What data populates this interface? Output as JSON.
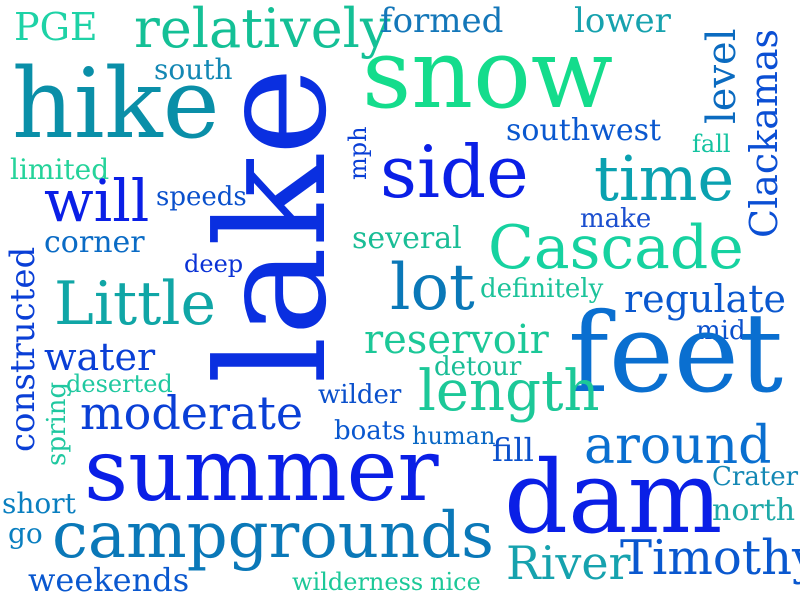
{
  "words": [
    {
      "text": "PGE",
      "color": "#1ed2a6"
    },
    {
      "text": "relatively",
      "color": "#14c096"
    },
    {
      "text": "formed",
      "color": "#1477b9"
    },
    {
      "text": "lower",
      "color": "#16a2ae"
    },
    {
      "text": "level",
      "color": "#0b6bc0"
    },
    {
      "text": "Clackamas",
      "color": "#0b4fd4"
    },
    {
      "text": "snow",
      "color": "#14dc8c"
    },
    {
      "text": "hike",
      "color": "#0a8fa8"
    },
    {
      "text": "south",
      "color": "#1488b4"
    },
    {
      "text": "lake",
      "color": "#0a2fe0"
    },
    {
      "text": "southwest",
      "color": "#0a58cf"
    },
    {
      "text": "mph",
      "color": "#0a3fd6"
    },
    {
      "text": "fall",
      "color": "#14c3a0"
    },
    {
      "text": "limited",
      "color": "#25d39a"
    },
    {
      "text": "side",
      "color": "#0a1fe6"
    },
    {
      "text": "time",
      "color": "#0aa1b0"
    },
    {
      "text": "will",
      "color": "#0a1fe6"
    },
    {
      "text": "speeds",
      "color": "#0a50cc"
    },
    {
      "text": "make",
      "color": "#1b4fcf"
    },
    {
      "text": "constructed",
      "color": "#0a3fd6"
    },
    {
      "text": "corner",
      "color": "#0a6bc5"
    },
    {
      "text": "several",
      "color": "#1abd96"
    },
    {
      "text": "Cascade",
      "color": "#16d2a0"
    },
    {
      "text": "deep",
      "color": "#0a32d6"
    },
    {
      "text": "lot",
      "color": "#0a78b8"
    },
    {
      "text": "definitely",
      "color": "#1cc39a"
    },
    {
      "text": "Little",
      "color": "#10a6a6"
    },
    {
      "text": "regulate",
      "color": "#0a58cf"
    },
    {
      "text": "reservoir",
      "color": "#1cc898"
    },
    {
      "text": "mid",
      "color": "#0a50cc"
    },
    {
      "text": "feet",
      "color": "#0a6fd0"
    },
    {
      "text": "water",
      "color": "#0a3fd6"
    },
    {
      "text": "detour",
      "color": "#1abd96"
    },
    {
      "text": "deserted",
      "color": "#20c8a0"
    },
    {
      "text": "wilder",
      "color": "#0a50cc"
    },
    {
      "text": "length",
      "color": "#1cc898"
    },
    {
      "text": "spring",
      "color": "#20c8a0"
    },
    {
      "text": "moderate",
      "color": "#0a3fd6"
    },
    {
      "text": "boats",
      "color": "#0a58cf"
    },
    {
      "text": "human",
      "color": "#0a68c5"
    },
    {
      "text": "fill",
      "color": "#0a50cc"
    },
    {
      "text": "around",
      "color": "#0a6fd0"
    },
    {
      "text": "summer",
      "color": "#0a1fe6"
    },
    {
      "text": "Crater",
      "color": "#1488b4"
    },
    {
      "text": "dam",
      "color": "#0a1fe6"
    },
    {
      "text": "short",
      "color": "#0a7fc0"
    },
    {
      "text": "go",
      "color": "#0a7fc0"
    },
    {
      "text": "north",
      "color": "#1ea9a8"
    },
    {
      "text": "campgrounds",
      "color": "#0a78b8"
    },
    {
      "text": "Timothy",
      "color": "#0a58cf"
    },
    {
      "text": "River",
      "color": "#16a2ae"
    },
    {
      "text": "weekends",
      "color": "#0a58cf"
    },
    {
      "text": "wilderness",
      "color": "#1cc898"
    },
    {
      "text": "nice",
      "color": "#1cc898"
    }
  ]
}
